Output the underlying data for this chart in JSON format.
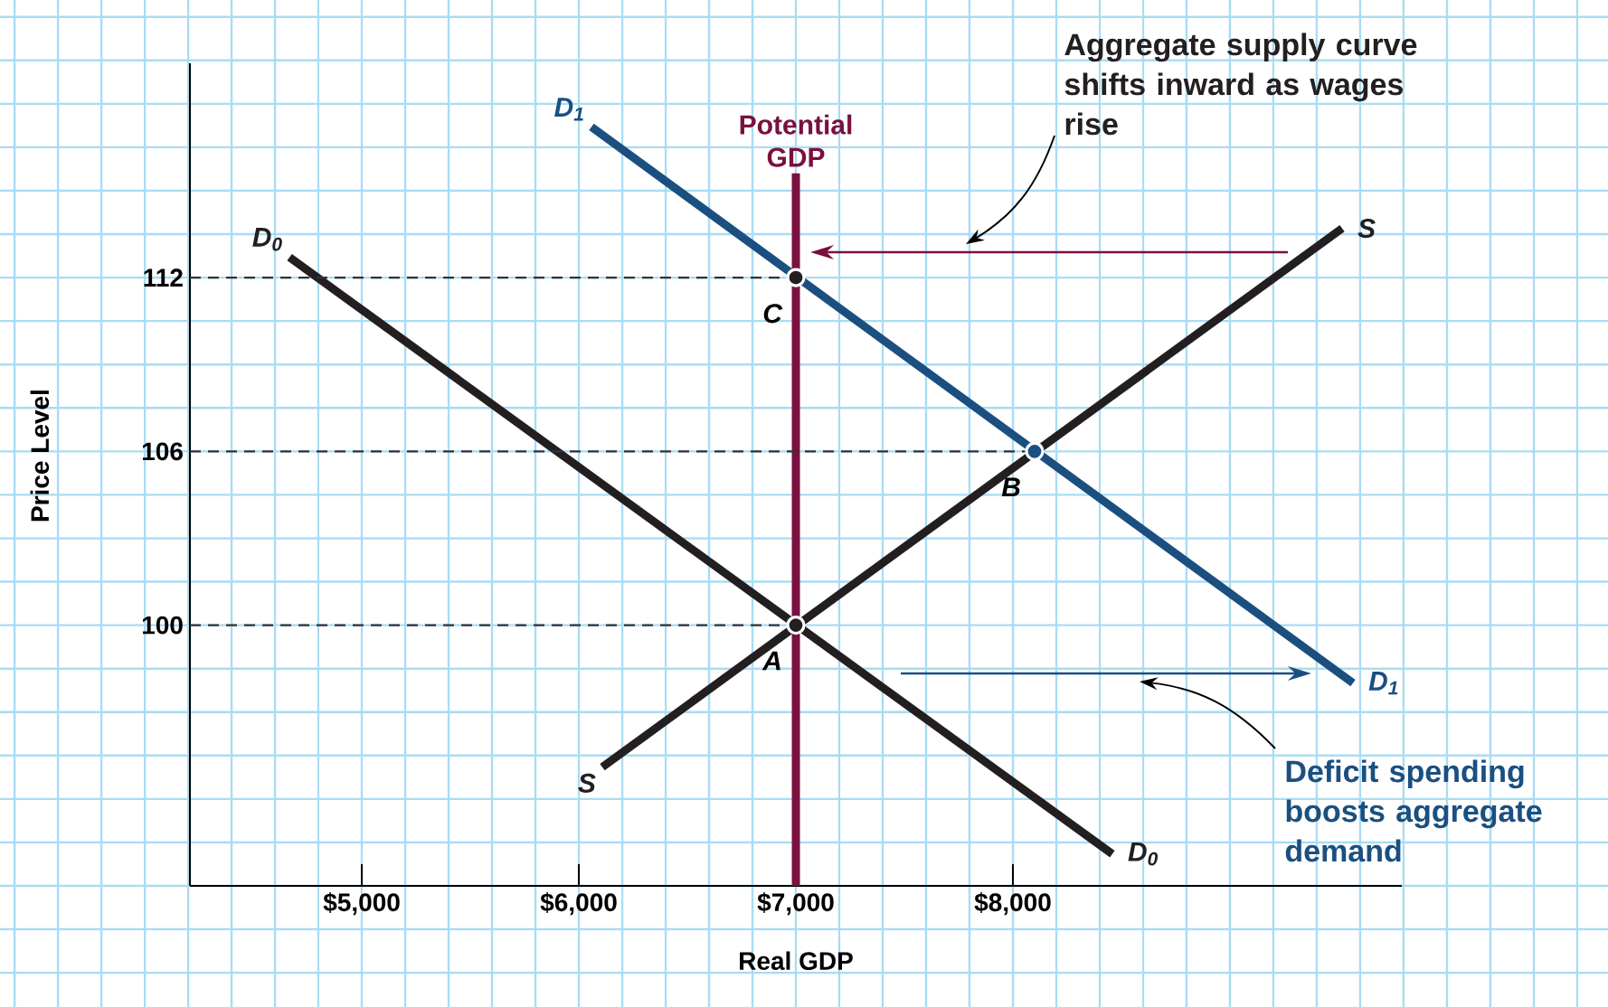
{
  "chart_data": {
    "type": "line",
    "xlabel": "Real GDP",
    "ylabel": "Price Level",
    "xlim": [
      4208,
      9792
    ],
    "ylim": [
      91,
      119.4
    ],
    "xticks": [
      {
        "value": 5000,
        "label": "$5,000"
      },
      {
        "value": 6000,
        "label": "$6,000"
      },
      {
        "value": 7000,
        "label": "$7,000"
      },
      {
        "value": 8000,
        "label": "$8,000"
      }
    ],
    "yticks": [
      100,
      106,
      112
    ],
    "grid": true,
    "series": [
      {
        "name": "D$_{0}$",
        "color": "#231f20",
        "x": [
          4667,
          8458
        ],
        "values": [
          112.7,
          92.1
        ]
      },
      {
        "name": "D$_{1}$",
        "color": "#1a4f80",
        "x": [
          6058,
          9567
        ],
        "values": [
          117.2,
          98.0
        ]
      },
      {
        "name": "S",
        "color": "#231f20",
        "x": [
          6108,
          9517
        ],
        "values": [
          95.1,
          113.7
        ]
      },
      {
        "name": "Potential GDP",
        "color": "#7a1040",
        "x": [
          7000,
          7000
        ],
        "values": [
          91,
          115.6
        ]
      },
      {
        "color": "#333333",
        "line_style": "dashed",
        "x": [
          4208,
          7000
        ],
        "values": [
          112,
          112
        ]
      },
      {
        "color": "#333333",
        "line_style": "dashed",
        "x": [
          4208,
          8100
        ],
        "values": [
          106,
          106
        ]
      },
      {
        "color": "#333333",
        "line_style": "dashed",
        "x": [
          4208,
          7000
        ],
        "values": [
          100,
          100
        ]
      },
      {
        "type": "scatter",
        "marker": "circle",
        "colors": [
          "#231f20",
          "#1a4f80",
          "#231f20"
        ],
        "x": [
          7000,
          8100,
          7000
        ],
        "values": [
          100,
          106,
          112
        ]
      }
    ],
    "annotations": [
      "A",
      "B",
      "C",
      "Aggregate supply curve shifts inward as wages rise",
      "Deficit spending boosts aggregate demand"
    ]
  }
}
